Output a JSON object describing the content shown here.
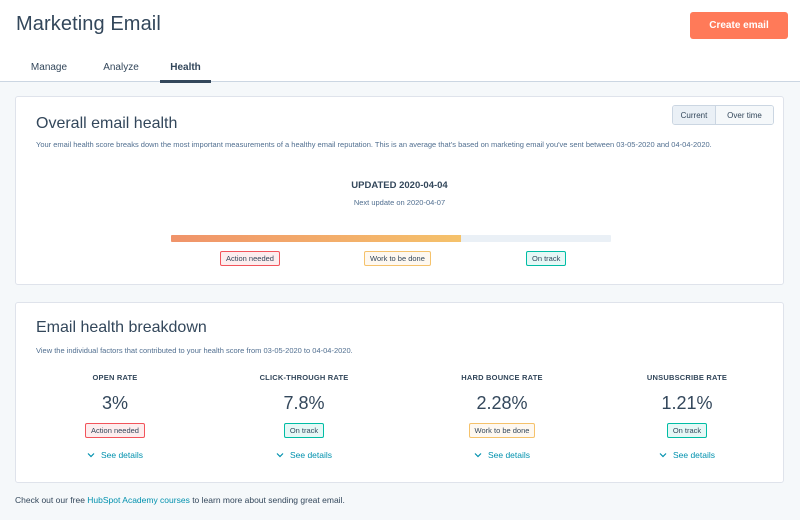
{
  "header": {
    "title": "Marketing Email",
    "create_button": "Create email",
    "tabs": [
      {
        "label": "Manage"
      },
      {
        "label": "Analyze"
      },
      {
        "label": "Health"
      }
    ],
    "active_tab": "Health"
  },
  "overall": {
    "title": "Overall email health",
    "description": "Your email health score breaks down the most important measurements of a healthy email reputation. This is an average that's based on marketing email you've sent between 03-05-2020 and 04-04-2020.",
    "toggle": {
      "current": "Current",
      "over_time": "Over time",
      "selected": "Current"
    },
    "updated": "UPDATED 2020-04-04",
    "next_update": "Next update on 2020-04-07",
    "score_fraction": 0.66,
    "legend": {
      "action_needed": "Action needed",
      "work_to_be_done": "Work to be done",
      "on_track": "On track"
    }
  },
  "breakdown": {
    "title": "Email health breakdown",
    "description": "View the individual factors that contributed to your health score from 03-05-2020 to 04-04-2020.",
    "see_details": "See details",
    "metrics": [
      {
        "label": "OPEN RATE",
        "value": "3%",
        "status": "Action needed"
      },
      {
        "label": "CLICK-THROUGH RATE",
        "value": "7.8%",
        "status": "On track"
      },
      {
        "label": "HARD BOUNCE RATE",
        "value": "2.28%",
        "status": "Work to be done"
      },
      {
        "label": "UNSUBSCRIBE RATE",
        "value": "1.21%",
        "status": "On track"
      }
    ]
  },
  "footer": {
    "prefix": "Check out our free ",
    "link": "HubSpot Academy courses",
    "suffix": " to learn more about sending great email."
  },
  "colors": {
    "accent": "#ff7a59",
    "link": "#0091ae",
    "action_needed": "#f2545b",
    "work_to_be_done": "#f5c26b",
    "on_track": "#00bda5"
  }
}
